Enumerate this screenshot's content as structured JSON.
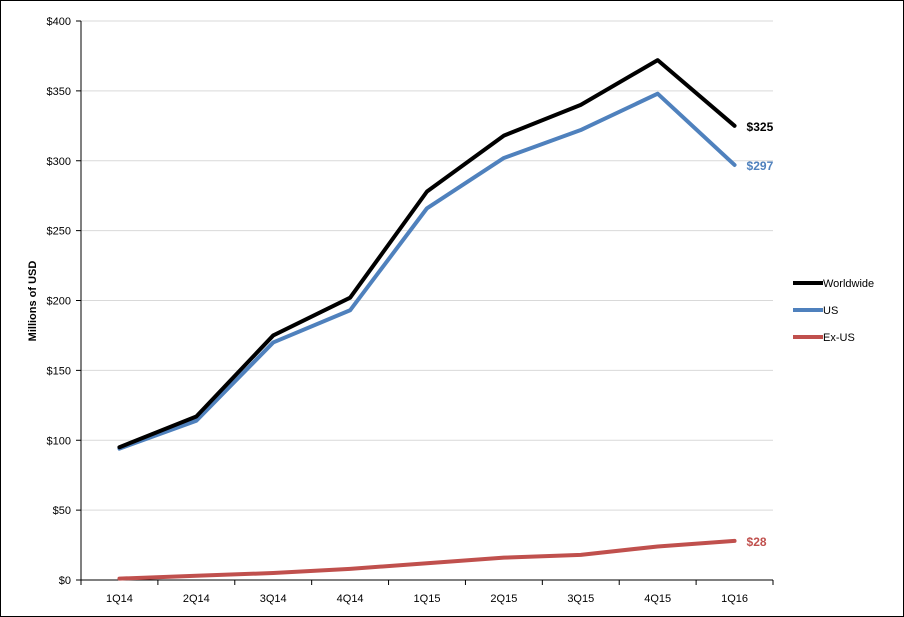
{
  "chart_data": {
    "type": "line",
    "ylabel": "Millions of USD",
    "ylim": [
      0,
      400
    ],
    "y_ticks": [
      "$0",
      "$50",
      "$100",
      "$150",
      "$200",
      "$250",
      "$300",
      "$350",
      "$400"
    ],
    "y_tick_values": [
      0,
      50,
      100,
      150,
      200,
      250,
      300,
      350,
      400
    ],
    "categories": [
      "1Q14",
      "2Q14",
      "3Q14",
      "4Q14",
      "1Q15",
      "2Q15",
      "3Q15",
      "4Q15",
      "1Q16"
    ],
    "grid": "horizontal",
    "legend_position": "right",
    "series": [
      {
        "name": "Worldwide",
        "color": "#000000",
        "values": [
          95,
          117,
          175,
          202,
          278,
          318,
          340,
          372,
          325
        ],
        "end_label": "$325"
      },
      {
        "name": "US",
        "color": "#4f81bd",
        "values": [
          94,
          114,
          170,
          193,
          266,
          302,
          322,
          348,
          297
        ],
        "end_label": "$297"
      },
      {
        "name": "Ex-US",
        "color": "#c0504d",
        "values": [
          1,
          3,
          5,
          8,
          12,
          16,
          18,
          24,
          28
        ],
        "end_label": "$28"
      }
    ]
  }
}
